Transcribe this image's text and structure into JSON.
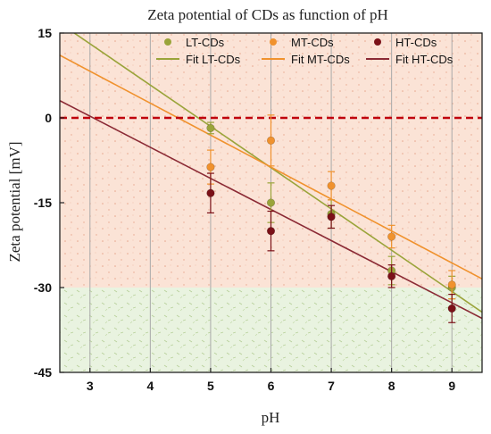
{
  "chart_data": {
    "type": "scatter",
    "title": "Zeta potential of CDs as function of pH",
    "xlabel": "pH",
    "ylabel": "Zeta potential [mV]",
    "xlim": [
      2.5,
      9.5
    ],
    "ylim": [
      -45,
      15
    ],
    "x_ticks": [
      3,
      4,
      5,
      6,
      7,
      8,
      9
    ],
    "y_ticks": [
      15,
      0,
      -15,
      -30,
      -45
    ],
    "grid": "vertical",
    "legend_position": "top-right",
    "reference_line": {
      "y": 0,
      "color": "#c0000c",
      "style": "dashed"
    },
    "bands": [
      {
        "from": -30,
        "to": 15,
        "color": "#fbe3d6"
      },
      {
        "from": -45,
        "to": -30,
        "color": "#e9f3e0"
      }
    ],
    "series": [
      {
        "name": "LT-CDs",
        "color": "#9aa43a",
        "x": [
          5,
          6,
          7,
          8,
          9
        ],
        "y": [
          -1.8,
          -15,
          -17,
          -27,
          -30
        ],
        "error": [
          1.0,
          3.5,
          2.5,
          2.5,
          2.0
        ]
      },
      {
        "name": "MT-CDs",
        "color": "#f0922e",
        "x": [
          5,
          6,
          7,
          8,
          9
        ],
        "y": [
          -8.7,
          -4,
          -12,
          -21,
          -29.5
        ],
        "error": [
          3.0,
          4.5,
          2.5,
          2.0,
          2.5
        ]
      },
      {
        "name": "HT-CDs",
        "color": "#7b1118",
        "x": [
          5,
          6,
          7,
          8,
          9
        ],
        "y": [
          -13.3,
          -20,
          -17.5,
          -28,
          -33.7
        ],
        "error": [
          3.5,
          3.5,
          2.0,
          2.0,
          2.5
        ]
      }
    ],
    "fits": [
      {
        "name": "Fit LT-CDs",
        "color": "#9aa43a",
        "slope": -7.3,
        "intercept": 35.0
      },
      {
        "name": "Fit MT-CDs",
        "color": "#f0922e",
        "slope": -5.65,
        "intercept": 25.2
      },
      {
        "name": "Fit HT-CDs",
        "color": "#8b2a35",
        "slope": -5.5,
        "intercept": 16.8
      }
    ]
  }
}
